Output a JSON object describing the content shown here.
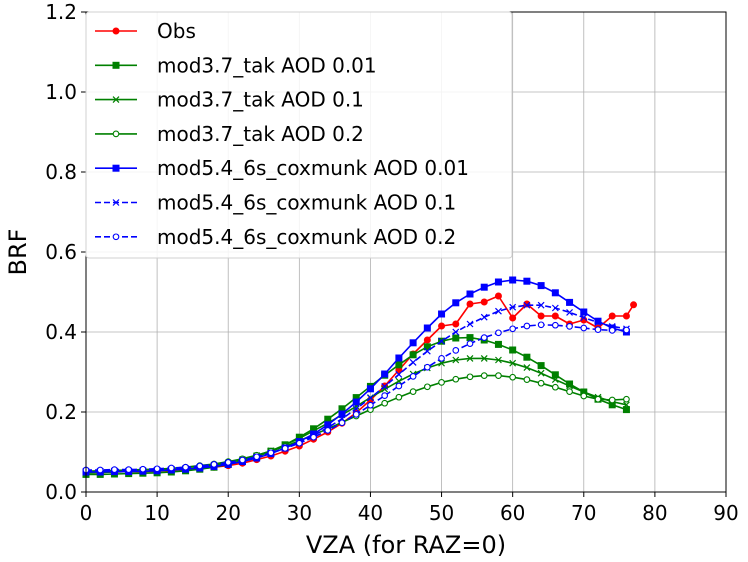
{
  "chart_data": {
    "type": "line",
    "title": "",
    "xlabel": "VZA (for RAZ=0)",
    "ylabel": "BRF",
    "xlim": [
      0,
      90
    ],
    "ylim": [
      0,
      1.2
    ],
    "xticks": [
      0,
      10,
      20,
      30,
      40,
      50,
      60,
      70,
      80,
      90
    ],
    "yticks": [
      0.0,
      0.2,
      0.4,
      0.6,
      0.8,
      1.0,
      1.2
    ],
    "xtick_labels": [
      "0",
      "10",
      "20",
      "30",
      "40",
      "50",
      "60",
      "70",
      "80",
      "90"
    ],
    "ytick_labels": [
      "0.0",
      "0.2",
      "0.4",
      "0.6",
      "0.8",
      "1.0",
      "1.2"
    ],
    "grid": true,
    "legend_position": "top-left",
    "series": [
      {
        "name": "Obs",
        "color": "#ff0000",
        "linestyle": "solid",
        "marker": "circle-filled",
        "x": [
          0,
          2,
          4,
          6,
          8,
          10,
          12,
          14,
          16,
          18,
          20,
          22,
          24,
          26,
          28,
          30,
          32,
          34,
          36,
          38,
          40,
          42,
          44,
          46,
          48,
          50,
          52,
          54,
          56,
          58,
          60,
          62,
          64,
          66,
          68,
          70,
          72,
          74,
          76,
          77
        ],
        "y": [
          0.048,
          0.049,
          0.05,
          0.051,
          0.051,
          0.052,
          0.054,
          0.056,
          0.058,
          0.062,
          0.066,
          0.072,
          0.081,
          0.09,
          0.102,
          0.115,
          0.132,
          0.15,
          0.172,
          0.198,
          0.23,
          0.265,
          0.305,
          0.345,
          0.38,
          0.415,
          0.42,
          0.47,
          0.475,
          0.49,
          0.435,
          0.47,
          0.44,
          0.44,
          0.42,
          0.43,
          0.41,
          0.44,
          0.44,
          0.468
        ]
      },
      {
        "name": "mod3.7_tak AOD 0.01",
        "color": "#008000",
        "linestyle": "solid",
        "marker": "square-filled",
        "x": [
          0,
          2,
          4,
          6,
          8,
          10,
          12,
          14,
          16,
          18,
          20,
          22,
          24,
          26,
          28,
          30,
          32,
          34,
          36,
          38,
          40,
          42,
          44,
          46,
          48,
          50,
          52,
          54,
          56,
          58,
          60,
          62,
          64,
          66,
          68,
          70,
          72,
          74,
          76
        ],
        "y": [
          0.044,
          0.044,
          0.045,
          0.046,
          0.047,
          0.048,
          0.05,
          0.053,
          0.057,
          0.062,
          0.069,
          0.077,
          0.088,
          0.102,
          0.118,
          0.137,
          0.158,
          0.182,
          0.208,
          0.236,
          0.264,
          0.292,
          0.318,
          0.343,
          0.363,
          0.377,
          0.385,
          0.386,
          0.38,
          0.369,
          0.355,
          0.337,
          0.316,
          0.293,
          0.27,
          0.25,
          0.232,
          0.218,
          0.206
        ]
      },
      {
        "name": "mod3.7_tak AOD 0.1",
        "color": "#008000",
        "linestyle": "solid",
        "marker": "x",
        "x": [
          0,
          2,
          4,
          6,
          8,
          10,
          12,
          14,
          16,
          18,
          20,
          22,
          24,
          26,
          28,
          30,
          32,
          34,
          36,
          38,
          40,
          42,
          44,
          46,
          48,
          50,
          52,
          54,
          56,
          58,
          60,
          62,
          64,
          66,
          68,
          70,
          72,
          74,
          76
        ],
        "y": [
          0.048,
          0.049,
          0.05,
          0.051,
          0.052,
          0.053,
          0.055,
          0.058,
          0.062,
          0.067,
          0.073,
          0.081,
          0.091,
          0.103,
          0.118,
          0.134,
          0.153,
          0.172,
          0.193,
          0.214,
          0.236,
          0.257,
          0.277,
          0.295,
          0.31,
          0.322,
          0.33,
          0.334,
          0.334,
          0.33,
          0.322,
          0.311,
          0.297,
          0.281,
          0.265,
          0.25,
          0.237,
          0.226,
          0.218
        ]
      },
      {
        "name": "mod3.7_tak AOD 0.2",
        "color": "#008000",
        "linestyle": "solid",
        "marker": "circle-open",
        "x": [
          0,
          2,
          4,
          6,
          8,
          10,
          12,
          14,
          16,
          18,
          20,
          22,
          24,
          26,
          28,
          30,
          32,
          34,
          36,
          38,
          40,
          42,
          44,
          46,
          48,
          50,
          52,
          54,
          56,
          58,
          60,
          62,
          64,
          66,
          68,
          70,
          72,
          74,
          76
        ],
        "y": [
          0.052,
          0.053,
          0.054,
          0.055,
          0.056,
          0.057,
          0.059,
          0.062,
          0.066,
          0.07,
          0.076,
          0.083,
          0.092,
          0.102,
          0.114,
          0.128,
          0.143,
          0.158,
          0.174,
          0.19,
          0.206,
          0.222,
          0.237,
          0.251,
          0.263,
          0.274,
          0.282,
          0.288,
          0.291,
          0.291,
          0.287,
          0.281,
          0.272,
          0.262,
          0.251,
          0.24,
          0.232,
          0.23,
          0.232
        ]
      },
      {
        "name": "mod5.4_6s_coxmunk AOD 0.01",
        "color": "#0000ff",
        "linestyle": "solid",
        "marker": "square-filled",
        "x": [
          0,
          2,
          4,
          6,
          8,
          10,
          12,
          14,
          16,
          18,
          20,
          22,
          24,
          26,
          28,
          30,
          32,
          34,
          36,
          38,
          40,
          42,
          44,
          46,
          48,
          50,
          52,
          54,
          56,
          58,
          60,
          62,
          64,
          66,
          68,
          70,
          72,
          74,
          76
        ],
        "y": [
          0.05,
          0.05,
          0.051,
          0.051,
          0.052,
          0.053,
          0.055,
          0.057,
          0.06,
          0.064,
          0.069,
          0.076,
          0.085,
          0.096,
          0.11,
          0.126,
          0.145,
          0.168,
          0.195,
          0.225,
          0.258,
          0.295,
          0.335,
          0.373,
          0.41,
          0.445,
          0.473,
          0.495,
          0.512,
          0.525,
          0.53,
          0.527,
          0.516,
          0.498,
          0.474,
          0.45,
          0.427,
          0.41,
          0.4
        ]
      },
      {
        "name": "mod5.4_6s_coxmunk AOD 0.1",
        "color": "#0000ff",
        "linestyle": "dashed",
        "marker": "x",
        "x": [
          0,
          2,
          4,
          6,
          8,
          10,
          12,
          14,
          16,
          18,
          20,
          22,
          24,
          26,
          28,
          30,
          32,
          34,
          36,
          38,
          40,
          42,
          44,
          46,
          48,
          50,
          52,
          54,
          56,
          58,
          60,
          62,
          64,
          66,
          68,
          70,
          72,
          74,
          76
        ],
        "y": [
          0.052,
          0.052,
          0.053,
          0.053,
          0.054,
          0.055,
          0.057,
          0.059,
          0.062,
          0.066,
          0.071,
          0.078,
          0.087,
          0.097,
          0.11,
          0.124,
          0.141,
          0.161,
          0.183,
          0.208,
          0.235,
          0.264,
          0.294,
          0.324,
          0.352,
          0.377,
          0.4,
          0.42,
          0.437,
          0.452,
          0.462,
          0.467,
          0.467,
          0.46,
          0.449,
          0.436,
          0.424,
          0.414,
          0.408
        ]
      },
      {
        "name": "mod5.4_6s_coxmunk AOD 0.2",
        "color": "#0000ff",
        "linestyle": "dashed",
        "marker": "circle-open",
        "x": [
          0,
          2,
          4,
          6,
          8,
          10,
          12,
          14,
          16,
          18,
          20,
          22,
          24,
          26,
          28,
          30,
          32,
          34,
          36,
          38,
          40,
          42,
          44,
          46,
          48,
          50,
          52,
          54,
          56,
          58,
          60,
          62,
          64,
          66,
          68,
          70,
          72,
          74,
          76
        ],
        "y": [
          0.055,
          0.055,
          0.056,
          0.056,
          0.057,
          0.058,
          0.06,
          0.062,
          0.065,
          0.069,
          0.074,
          0.08,
          0.088,
          0.098,
          0.109,
          0.122,
          0.137,
          0.154,
          0.173,
          0.194,
          0.217,
          0.241,
          0.265,
          0.289,
          0.312,
          0.334,
          0.354,
          0.371,
          0.386,
          0.398,
          0.408,
          0.415,
          0.418,
          0.417,
          0.414,
          0.41,
          0.406,
          0.404,
          0.405
        ]
      }
    ]
  }
}
